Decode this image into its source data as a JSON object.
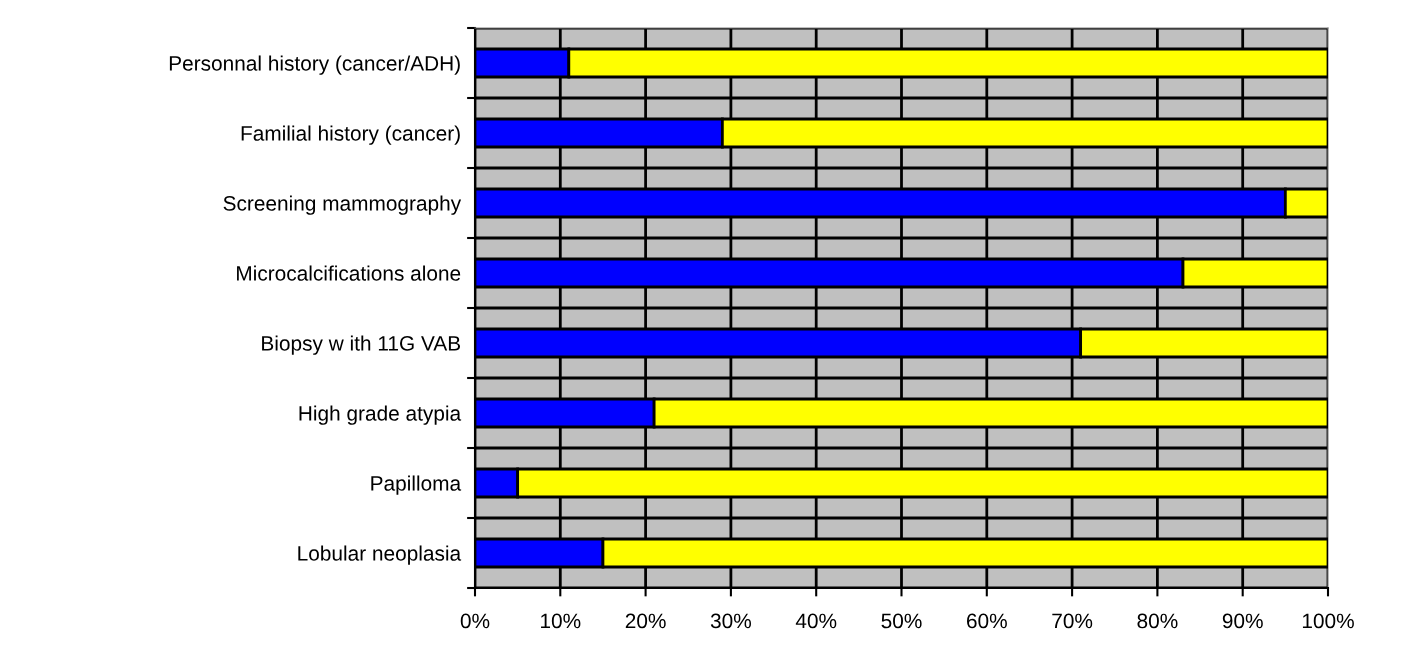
{
  "chart_data": {
    "type": "bar",
    "orientation": "horizontal",
    "stacked": true,
    "categories": [
      "Personnal history (cancer/ADH)",
      "Familial history (cancer)",
      "Screening mammography",
      "Microcalcifications alone",
      "Biopsy w ith 11G VAB",
      "High grade atypia",
      "Papilloma",
      "Lobular neoplasia"
    ],
    "series": [
      {
        "color": "#0000ff",
        "values": [
          11,
          29,
          95,
          83,
          71,
          21,
          5,
          15
        ]
      },
      {
        "color": "#ffff00",
        "values": [
          89,
          71,
          5,
          17,
          29,
          79,
          95,
          85
        ]
      }
    ],
    "xlim": [
      0,
      100
    ],
    "xticks": [
      {
        "value": 0,
        "label": "0%"
      },
      {
        "value": 10,
        "label": "10%"
      },
      {
        "value": 20,
        "label": "20%"
      },
      {
        "value": 30,
        "label": "30%"
      },
      {
        "value": 40,
        "label": "40%"
      },
      {
        "value": 50,
        "label": "50%"
      },
      {
        "value": 60,
        "label": "60%"
      },
      {
        "value": 70,
        "label": "70%"
      },
      {
        "value": 80,
        "label": "80%"
      },
      {
        "value": 90,
        "label": "90%"
      },
      {
        "value": 100,
        "label": "100%"
      }
    ],
    "grid": true
  }
}
